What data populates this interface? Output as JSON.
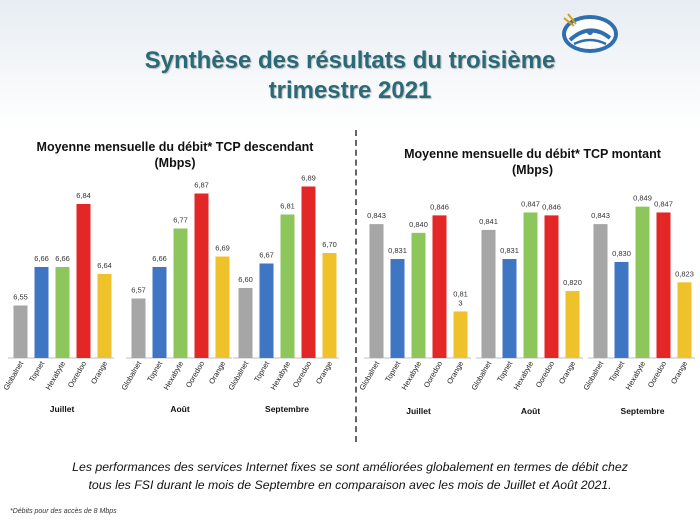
{
  "page": {
    "title_line1": "Synthèse des résultats du troisième",
    "title_line2": "trimestre 2021",
    "footer_line1": "Les performances des services Internet fixes se sont améliorées globalement en termes de débit chez",
    "footer_line2": "tous les FSI durant le mois de Septembre en comparaison avec les mois de Juillet et Août 2021.",
    "footnote": "*Débits pour des accès de 8 Mbps"
  },
  "colors": {
    "Globalnet": "#a6a6a6",
    "Topnet": "#3f76c4",
    "Hexabyte": "#8dc75b",
    "Ooredoo": "#e32626",
    "Orange": "#efc12b"
  },
  "chart_data": [
    {
      "type": "bar",
      "title_line1": "Moyenne mensuelle du débit* TCP descendant",
      "title_line2": "(Mbps)",
      "categories": [
        "Globalnet",
        "Topnet",
        "Hexabyte",
        "Ooredoo",
        "Orange"
      ],
      "groups": [
        {
          "name": "Juillet",
          "values": [
            6.55,
            6.66,
            6.66,
            6.84,
            6.64
          ],
          "labels": [
            "6,55",
            "6,66",
            "6,66",
            "6,84",
            "6,64"
          ]
        },
        {
          "name": "Août",
          "values": [
            6.57,
            6.66,
            6.77,
            6.87,
            6.69
          ],
          "labels": [
            "6,57",
            "6,66",
            "6,77",
            "6,87",
            "6,69"
          ]
        },
        {
          "name": "Septembre",
          "values": [
            6.6,
            6.67,
            6.81,
            6.89,
            6.7
          ],
          "labels": [
            "6,60",
            "6,67",
            "6,81",
            "6,89",
            "6,70"
          ]
        }
      ],
      "ylim": [
        6.4,
        6.92
      ]
    },
    {
      "type": "bar",
      "title_line1": "Moyenne mensuelle du débit* TCP montant",
      "title_line2": "(Mbps)",
      "categories": [
        "Globalnet",
        "Topnet",
        "Hexabyte",
        "Ooredoo",
        "Orange"
      ],
      "groups": [
        {
          "name": "Juillet",
          "values": [
            0.843,
            0.831,
            0.84,
            0.846,
            0.813
          ],
          "labels": [
            "0,843",
            "0,831",
            "0,840",
            "0,846",
            "0,81\n3"
          ]
        },
        {
          "name": "Août",
          "values": [
            0.841,
            0.831,
            0.847,
            0.846,
            0.82
          ],
          "labels": [
            "0,841",
            "0,831",
            "0,847",
            "0,846",
            "0,820"
          ]
        },
        {
          "name": "Septembre",
          "values": [
            0.843,
            0.83,
            0.849,
            0.847,
            0.823
          ],
          "labels": [
            "0,843",
            "0,830",
            "0,849",
            "0,847",
            "0,823"
          ]
        }
      ],
      "ylim": [
        0.797,
        0.853
      ]
    }
  ]
}
